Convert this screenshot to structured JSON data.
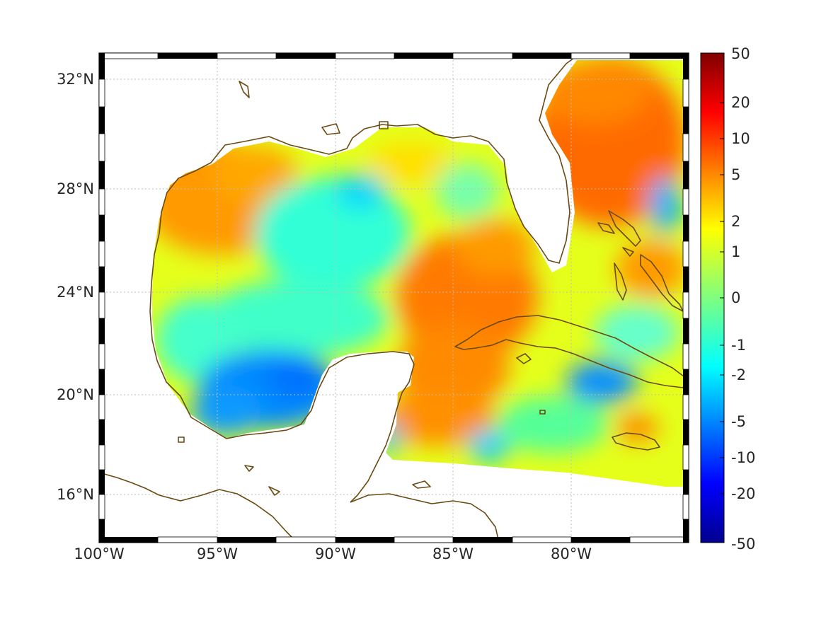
{
  "map": {
    "lon_ticks": [
      "100°W",
      "95°W",
      "90°W",
      "85°W",
      "80°W"
    ],
    "lat_ticks": [
      "32°N",
      "28°N",
      "24°N",
      "20°N",
      "16°N"
    ],
    "grid": true,
    "frame_style": "alternating black/white border"
  },
  "colorbar": {
    "ticks": [
      "50",
      "20",
      "10",
      "5",
      "2",
      "1",
      "0",
      "-1",
      "-2",
      "-5",
      "-10",
      "-20",
      "-50"
    ],
    "colormap": "jet",
    "colors": {
      "low": "#00008f",
      "blue": "#0000ff",
      "cyan": "#00ffff",
      "yellow": "#ffff00",
      "red": "#ff0000",
      "high": "#800000"
    },
    "scale": "nonlinear"
  },
  "colors": {
    "coastline": "#6b4a12",
    "gridline": "#bdbdbd",
    "land": "#ffffff"
  }
}
